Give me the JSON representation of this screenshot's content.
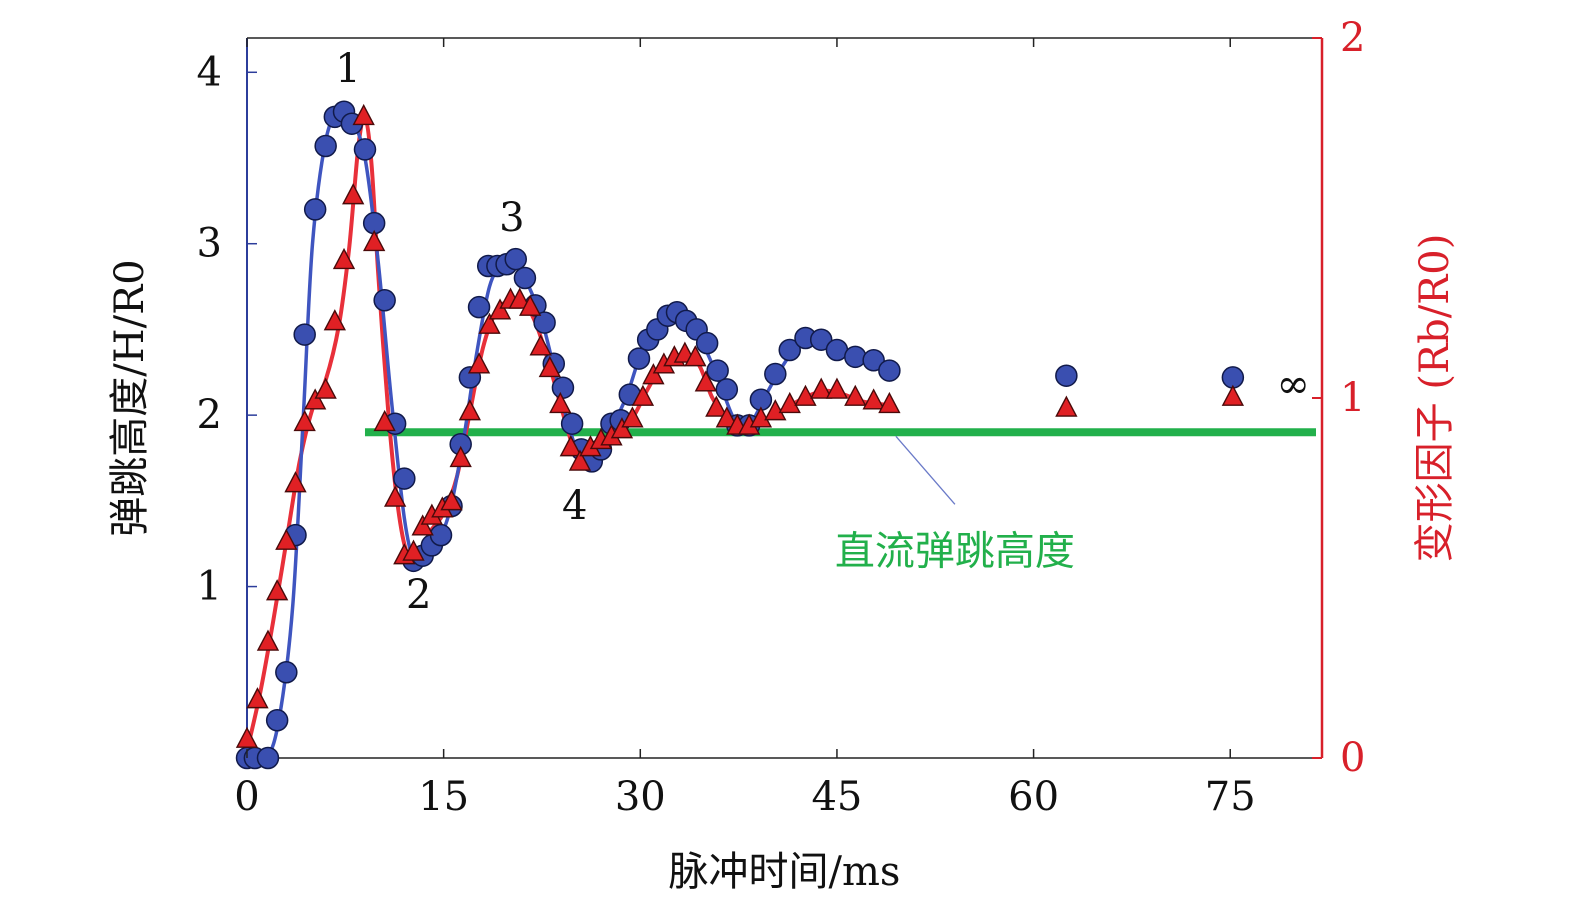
{
  "chart_data": {
    "type": "scatter",
    "title": "",
    "xlabel": "脉冲时间/ms",
    "ylabel_left": "弹跳高度/H/R0",
    "ylabel_right": "变形因子 (Rb/R0)",
    "xlim": [
      0,
      82
    ],
    "ylim_left": [
      0,
      4.2
    ],
    "ylim_right": [
      0,
      2
    ],
    "x_ticks": [
      "0",
      "15",
      "30",
      "45",
      "60",
      "75"
    ],
    "y_left_ticks": [
      "1",
      "2",
      "3",
      "4"
    ],
    "y_right_ticks": [
      "0",
      "1",
      "2"
    ],
    "colors": {
      "left_axis": "#2c3d9b",
      "right_axis": "#d8202a",
      "circle_fill": "#3a4fb0",
      "triangle_fill": "#e02024",
      "blue_curve": "#3f55c0",
      "red_curve": "#e8303a",
      "dc_line": "#22b04b"
    },
    "series": [
      {
        "name": "",
        "axis": "left",
        "marker": "circle",
        "points": [
          [
            0,
            0
          ],
          [
            0.6,
            0
          ],
          [
            1.6,
            0
          ],
          [
            2.3,
            0.22
          ],
          [
            3.0,
            0.5
          ],
          [
            3.7,
            1.3
          ],
          [
            4.4,
            2.47
          ],
          [
            5.2,
            3.2
          ],
          [
            6.0,
            3.57
          ],
          [
            6.7,
            3.74
          ],
          [
            7.4,
            3.77
          ],
          [
            8.0,
            3.7
          ],
          [
            9.0,
            3.55
          ],
          [
            9.7,
            3.12
          ],
          [
            10.5,
            2.67
          ],
          [
            11.3,
            1.95
          ],
          [
            12.0,
            1.63
          ],
          [
            12.7,
            1.15
          ],
          [
            13.4,
            1.18
          ],
          [
            14.1,
            1.24
          ],
          [
            14.8,
            1.3
          ],
          [
            15.6,
            1.47
          ],
          [
            16.3,
            1.83
          ],
          [
            17.0,
            2.22
          ],
          [
            17.7,
            2.63
          ],
          [
            18.4,
            2.87
          ],
          [
            19.1,
            2.87
          ],
          [
            19.8,
            2.88
          ],
          [
            20.5,
            2.91
          ],
          [
            21.2,
            2.8
          ],
          [
            22.0,
            2.64
          ],
          [
            22.7,
            2.54
          ],
          [
            23.4,
            2.3
          ],
          [
            24.1,
            2.16
          ],
          [
            24.8,
            1.95
          ],
          [
            25.5,
            1.8
          ],
          [
            26.3,
            1.73
          ],
          [
            27.0,
            1.8
          ],
          [
            27.8,
            1.95
          ],
          [
            28.5,
            1.97
          ],
          [
            29.2,
            2.12
          ],
          [
            29.9,
            2.33
          ],
          [
            30.6,
            2.44
          ],
          [
            31.3,
            2.5
          ],
          [
            32.1,
            2.58
          ],
          [
            32.8,
            2.6
          ],
          [
            33.5,
            2.55
          ],
          [
            34.3,
            2.5
          ],
          [
            35.1,
            2.42
          ],
          [
            35.9,
            2.26
          ],
          [
            36.6,
            2.15
          ],
          [
            37.4,
            1.94
          ],
          [
            38.3,
            1.94
          ],
          [
            39.2,
            2.09
          ],
          [
            40.3,
            2.24
          ],
          [
            41.4,
            2.38
          ],
          [
            42.6,
            2.45
          ],
          [
            43.8,
            2.44
          ],
          [
            45.0,
            2.38
          ],
          [
            46.4,
            2.34
          ],
          [
            47.8,
            2.32
          ],
          [
            49.0,
            2.26
          ],
          [
            62.5,
            2.23
          ],
          [
            75.2,
            2.22
          ]
        ]
      },
      {
        "name": "",
        "axis": "right",
        "marker": "triangle",
        "points": [
          [
            0,
            0.05
          ],
          [
            0.8,
            0.16
          ],
          [
            1.6,
            0.32
          ],
          [
            2.3,
            0.46
          ],
          [
            3.0,
            0.6
          ],
          [
            3.7,
            0.76
          ],
          [
            4.4,
            0.93
          ],
          [
            5.2,
            0.99
          ],
          [
            6.0,
            1.02
          ],
          [
            6.7,
            1.21
          ],
          [
            7.4,
            1.38
          ],
          [
            8.1,
            1.56
          ],
          [
            8.9,
            1.78
          ],
          [
            9.7,
            1.43
          ],
          [
            10.5,
            0.93
          ],
          [
            11.3,
            0.72
          ],
          [
            12.0,
            0.56
          ],
          [
            12.7,
            0.57
          ],
          [
            13.4,
            0.64
          ],
          [
            14.1,
            0.67
          ],
          [
            14.9,
            0.69
          ],
          [
            15.6,
            0.71
          ],
          [
            16.3,
            0.83
          ],
          [
            17.0,
            0.96
          ],
          [
            17.7,
            1.09
          ],
          [
            18.5,
            1.2
          ],
          [
            19.3,
            1.24
          ],
          [
            20.1,
            1.27
          ],
          [
            20.8,
            1.27
          ],
          [
            21.6,
            1.25
          ],
          [
            22.4,
            1.14
          ],
          [
            23.1,
            1.08
          ],
          [
            23.9,
            0.98
          ],
          [
            24.7,
            0.86
          ],
          [
            25.4,
            0.82
          ],
          [
            26.2,
            0.86
          ],
          [
            27.0,
            0.88
          ],
          [
            27.8,
            0.89
          ],
          [
            28.6,
            0.91
          ],
          [
            29.4,
            0.94
          ],
          [
            30.2,
            1.0
          ],
          [
            31.0,
            1.06
          ],
          [
            31.8,
            1.09
          ],
          [
            32.6,
            1.11
          ],
          [
            33.4,
            1.12
          ],
          [
            34.2,
            1.11
          ],
          [
            35.0,
            1.04
          ],
          [
            35.8,
            0.97
          ],
          [
            36.6,
            0.94
          ],
          [
            37.4,
            0.92
          ],
          [
            38.3,
            0.92
          ],
          [
            39.2,
            0.94
          ],
          [
            40.3,
            0.96
          ],
          [
            41.4,
            0.98
          ],
          [
            42.6,
            1.0
          ],
          [
            43.8,
            1.02
          ],
          [
            45.0,
            1.02
          ],
          [
            46.4,
            1.0
          ],
          [
            47.8,
            0.99
          ],
          [
            49.0,
            0.98
          ],
          [
            62.5,
            0.97
          ],
          [
            75.2,
            1.0
          ]
        ]
      }
    ],
    "fit_curves": [
      {
        "axis": "left",
        "points": [
          [
            0,
            0
          ],
          [
            1.5,
            0
          ],
          [
            2.5,
            0.25
          ],
          [
            3.5,
            0.9
          ],
          [
            4.3,
            2.0
          ],
          [
            5.0,
            3.0
          ],
          [
            6.0,
            3.6
          ],
          [
            7.0,
            3.77
          ],
          [
            8.0,
            3.72
          ],
          [
            9.0,
            3.5
          ],
          [
            10.0,
            2.9
          ],
          [
            11.0,
            2.1
          ],
          [
            12.0,
            1.4
          ],
          [
            12.8,
            1.13
          ],
          [
            13.5,
            1.14
          ],
          [
            14.5,
            1.25
          ],
          [
            15.5,
            1.45
          ],
          [
            16.5,
            1.85
          ],
          [
            17.5,
            2.35
          ],
          [
            18.5,
            2.75
          ],
          [
            19.5,
            2.88
          ],
          [
            20.5,
            2.88
          ],
          [
            21.5,
            2.75
          ],
          [
            22.5,
            2.55
          ],
          [
            23.5,
            2.25
          ],
          [
            24.5,
            1.95
          ],
          [
            25.5,
            1.72
          ],
          [
            26.3,
            1.7
          ],
          [
            27.0,
            1.78
          ],
          [
            28.0,
            1.95
          ],
          [
            29.0,
            2.12
          ],
          [
            30.0,
            2.35
          ],
          [
            31.0,
            2.5
          ],
          [
            32.0,
            2.58
          ],
          [
            33.0,
            2.58
          ],
          [
            34.0,
            2.5
          ],
          [
            35.0,
            2.38
          ],
          [
            36.0,
            2.2
          ],
          [
            37.0,
            2.0
          ],
          [
            37.8,
            1.9
          ],
          [
            38.6,
            1.97
          ],
          [
            39.6,
            2.12
          ],
          [
            40.8,
            2.28
          ],
          [
            42.0,
            2.4
          ],
          [
            43.5,
            2.45
          ],
          [
            45.0,
            2.4
          ],
          [
            46.5,
            2.33
          ],
          [
            48.0,
            2.28
          ],
          [
            49.0,
            2.26
          ]
        ]
      },
      {
        "axis": "right",
        "points": [
          [
            0,
            0.02
          ],
          [
            1.0,
            0.18
          ],
          [
            2.0,
            0.38
          ],
          [
            3.0,
            0.6
          ],
          [
            4.0,
            0.82
          ],
          [
            5.0,
            0.97
          ],
          [
            6.0,
            1.05
          ],
          [
            7.0,
            1.2
          ],
          [
            7.8,
            1.42
          ],
          [
            8.5,
            1.7
          ],
          [
            9.0,
            1.78
          ],
          [
            9.5,
            1.65
          ],
          [
            10.0,
            1.35
          ],
          [
            10.8,
            0.95
          ],
          [
            11.5,
            0.7
          ],
          [
            12.2,
            0.57
          ],
          [
            13.0,
            0.56
          ],
          [
            14.0,
            0.63
          ],
          [
            15.0,
            0.68
          ],
          [
            16.0,
            0.78
          ],
          [
            17.0,
            0.96
          ],
          [
            18.0,
            1.14
          ],
          [
            19.0,
            1.24
          ],
          [
            20.0,
            1.27
          ],
          [
            21.0,
            1.27
          ],
          [
            22.0,
            1.21
          ],
          [
            23.0,
            1.1
          ],
          [
            24.0,
            0.97
          ],
          [
            25.0,
            0.85
          ],
          [
            25.6,
            0.82
          ],
          [
            26.5,
            0.86
          ],
          [
            27.5,
            0.88
          ],
          [
            28.5,
            0.91
          ],
          [
            29.5,
            0.95
          ],
          [
            30.5,
            1.02
          ],
          [
            31.5,
            1.08
          ],
          [
            32.5,
            1.11
          ],
          [
            33.5,
            1.12
          ],
          [
            34.5,
            1.09
          ],
          [
            35.5,
            1.0
          ],
          [
            36.5,
            0.95
          ],
          [
            37.5,
            0.92
          ],
          [
            38.5,
            0.92
          ],
          [
            39.5,
            0.94
          ],
          [
            41.0,
            0.97
          ],
          [
            42.5,
            1.0
          ],
          [
            44.0,
            1.02
          ],
          [
            45.5,
            1.01
          ],
          [
            47.0,
            0.99
          ],
          [
            49.0,
            0.98
          ]
        ]
      }
    ],
    "reference_line": {
      "label": "直流弹跳高度",
      "axis": "left",
      "y": 1.9,
      "x_range": [
        9,
        82
      ]
    },
    "annotations": [
      {
        "text": "1",
        "x": 7.7,
        "y": 4.02
      },
      {
        "text": "2",
        "x": 13.1,
        "y": 0.95
      },
      {
        "text": "3",
        "x": 20.2,
        "y": 3.15
      },
      {
        "text": "4",
        "x": 25.0,
        "y": 1.47
      },
      {
        "text": "∞",
        "x": 79.8,
        "y": 2.18
      }
    ]
  }
}
